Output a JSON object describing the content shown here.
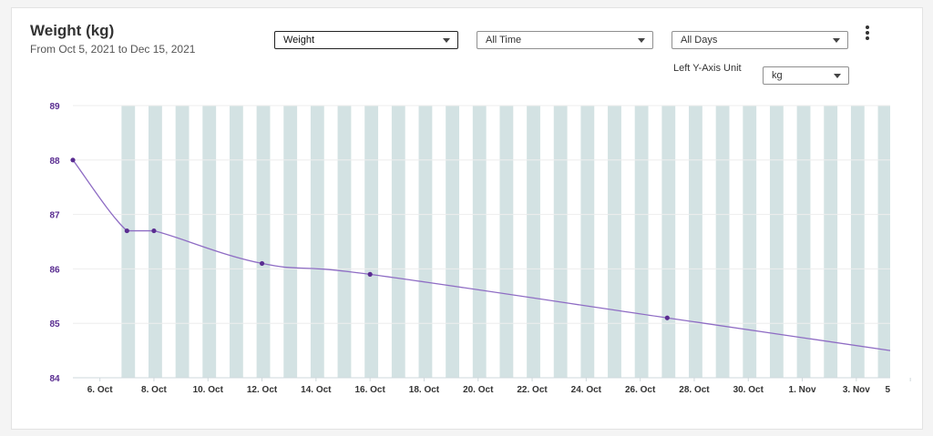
{
  "header": {
    "title": "Weight (kg)",
    "subtitle": "From Oct 5, 2021 to Dec 15, 2021"
  },
  "controls": {
    "metric_select": "Weight",
    "range_select": "All Time",
    "days_select": "All Days",
    "unit_label": "Left Y-Axis Unit",
    "unit_select": "kg",
    "more_icon": "more-vertical-icon"
  },
  "colors": {
    "line": "#8e6cc4",
    "point": "#5a2d91",
    "axis_text": "#5a2d91",
    "band": "#d3e2e3",
    "grid": "#eeeeee"
  },
  "chart_data": {
    "type": "line",
    "title": "Weight (kg)",
    "ylim": [
      84,
      89
    ],
    "yticks": [
      "84",
      "85",
      "86",
      "87",
      "88",
      "89"
    ],
    "xticks": [
      "6. Oct",
      "8. Oct",
      "10. Oct",
      "12. Oct",
      "14. Oct",
      "16. Oct",
      "18. Oct",
      "20. Oct",
      "22. Oct",
      "24. Oct",
      "26. Oct",
      "28. Oct",
      "30. Oct",
      "1. Nov",
      "3. Nov",
      "5"
    ],
    "series": [
      {
        "x": [
          "2021-10-05",
          "2021-10-07",
          "2021-10-08",
          "2021-10-12",
          "2021-10-16",
          "2021-10-27"
        ],
        "values": [
          88.0,
          86.7,
          86.7,
          86.1,
          85.9,
          85.1
        ]
      }
    ],
    "bands": true,
    "grid": true
  }
}
